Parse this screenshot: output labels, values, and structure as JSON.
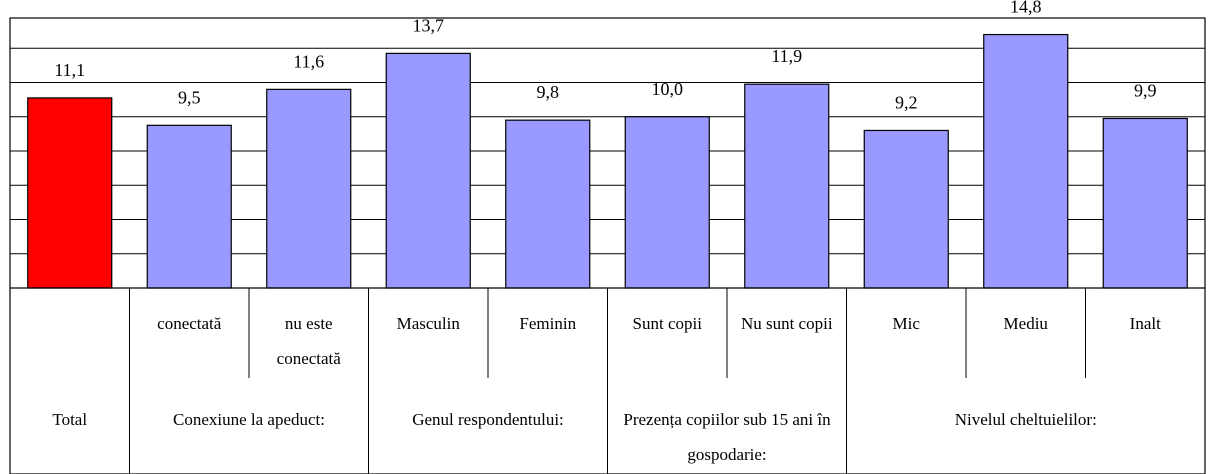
{
  "chart_data": {
    "type": "bar",
    "categories": [
      null,
      "conectată",
      "nu este conectată",
      "Masculin",
      "Feminin",
      "Sunt copii",
      "Nu sunt copii",
      "Mic",
      "Mediu",
      "Inalt"
    ],
    "values": [
      11.1,
      9.5,
      11.6,
      13.7,
      9.8,
      10.0,
      11.9,
      9.2,
      14.8,
      9.9
    ],
    "value_labels": [
      "11,1",
      "9,5",
      "11,6",
      "13,7",
      "9,8",
      "10,0",
      "11,9",
      "9,2",
      "14,8",
      "9,9"
    ],
    "colors": [
      "#ff0000",
      "#9999ff",
      "#9999ff",
      "#9999ff",
      "#9999ff",
      "#9999ff",
      "#9999ff",
      "#9999ff",
      "#9999ff",
      "#9999ff"
    ],
    "groups": [
      {
        "name": "Total",
        "span": 1
      },
      {
        "name": "Conexiune la apeduct:",
        "span": 2
      },
      {
        "name": "Genul respondentului:",
        "span": 2
      },
      {
        "name": "Prezența copiilor sub 15 ani în gospodarie:",
        "span": 2
      },
      {
        "name": "Nivelul cheltuielilor:",
        "span": 3
      }
    ],
    "ylim": [
      0,
      16
    ],
    "yticks": [
      0,
      2,
      4,
      6,
      8,
      10,
      12,
      14,
      16
    ],
    "grid": true
  }
}
